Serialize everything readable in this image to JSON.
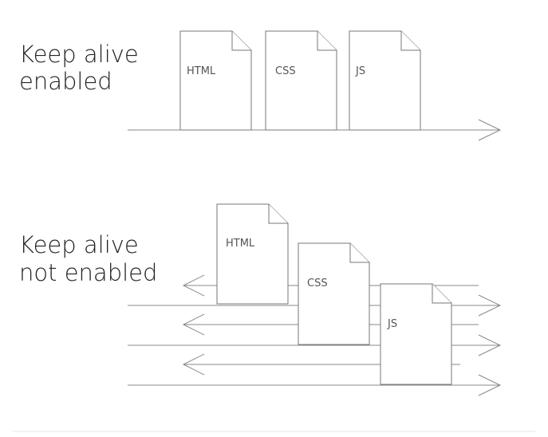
{
  "sections": {
    "keep_alive_enabled": {
      "caption_line1": "Keep alive",
      "caption_line2": "enabled",
      "files": [
        "HTML",
        "CSS",
        "JS"
      ]
    },
    "keep_alive_not_enabled": {
      "caption_line1": "Keep alive",
      "caption_line2": "not enabled",
      "files": [
        "HTML",
        "CSS",
        "JS"
      ]
    }
  }
}
